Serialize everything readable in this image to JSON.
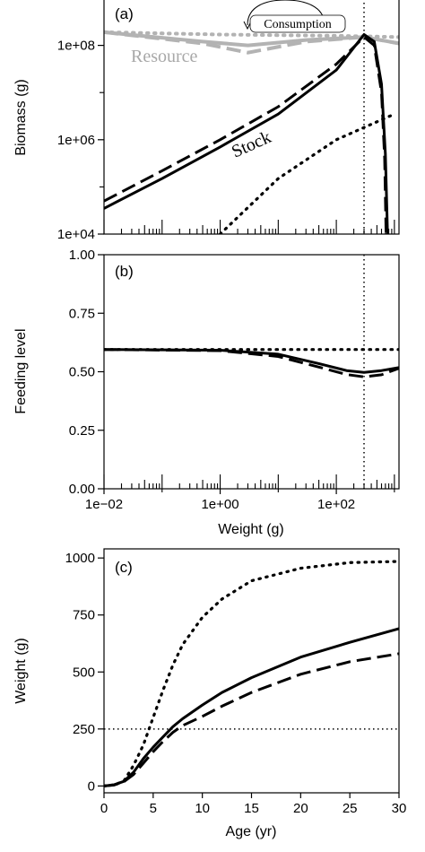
{
  "chart_data": [
    {
      "panel": "(a)",
      "type": "line",
      "xscale": "log",
      "yscale": "log",
      "xlim": [
        0.01,
        1200
      ],
      "ylim": [
        10000,
        1000000000
      ],
      "xlabel": "",
      "ylabel": "Biomass (g)",
      "yticks": [
        10000,
        1000000,
        100000000
      ],
      "ytick_labels": [
        "1e+04",
        "1e+06",
        "1e+08"
      ],
      "annotations": {
        "resource": "Resource",
        "stock": "Stock",
        "consumption": "Consumption"
      },
      "vline_x": 300,
      "series": [
        {
          "group": "stock",
          "style": "solid",
          "color": "#000000",
          "points": [
            [
              0.01,
              35000
            ],
            [
              0.1,
              150000
            ],
            [
              1,
              700000
            ],
            [
              10,
              3500000
            ],
            [
              100,
              30000000
            ],
            [
              300,
              170000000
            ],
            [
              450,
              120000000
            ],
            [
              600,
              15000000
            ],
            [
              700,
              500000
            ],
            [
              760,
              10000
            ]
          ]
        },
        {
          "group": "stock",
          "style": "dashed",
          "color": "#000000",
          "points": [
            [
              0.01,
              50000
            ],
            [
              0.1,
              220000
            ],
            [
              1,
              1000000
            ],
            [
              10,
              5000000
            ],
            [
              100,
              40000000
            ],
            [
              300,
              150000000
            ],
            [
              450,
              100000000
            ],
            [
              600,
              10000000
            ],
            [
              680,
              400000
            ],
            [
              720,
              10000
            ]
          ]
        },
        {
          "group": "stock",
          "style": "dotted",
          "color": "#000000",
          "points": [
            [
              1,
              10000
            ],
            [
              10,
              150000
            ],
            [
              100,
              1000000
            ],
            [
              1000,
              3500000
            ]
          ]
        },
        {
          "group": "resource",
          "style": "solid",
          "color": "#b3b3b3",
          "points": [
            [
              0.01,
              190000000
            ],
            [
              0.5,
              120000000
            ],
            [
              3,
              100000000
            ],
            [
              30,
              130000000
            ],
            [
              300,
              150000000
            ],
            [
              1200,
              110000000
            ]
          ]
        },
        {
          "group": "resource",
          "style": "dashed",
          "color": "#b3b3b3",
          "points": [
            [
              0.01,
              190000000
            ],
            [
              0.5,
              110000000
            ],
            [
              3,
              70000000
            ],
            [
              30,
              120000000
            ],
            [
              300,
              150000000
            ],
            [
              1200,
              110000000
            ]
          ]
        },
        {
          "group": "resource",
          "style": "dotted",
          "color": "#b3b3b3",
          "points": [
            [
              0.01,
              190000000
            ],
            [
              1,
              170000000
            ],
            [
              100,
              160000000
            ],
            [
              1200,
              150000000
            ]
          ]
        }
      ]
    },
    {
      "panel": "(b)",
      "type": "line",
      "xscale": "log",
      "yscale": "linear",
      "xlim": [
        0.01,
        1200
      ],
      "ylim": [
        0,
        1
      ],
      "xlabel": "Weight (g)",
      "ylabel": "Feeding level",
      "xticks": [
        0.01,
        1,
        100
      ],
      "xtick_labels": [
        "1e−02",
        "1e+00",
        "1e+02"
      ],
      "yticks": [
        0,
        0.25,
        0.5,
        0.75,
        1
      ],
      "ytick_labels": [
        "0.00",
        "0.25",
        "0.50",
        "0.75",
        "1.00"
      ],
      "vline_x": 300,
      "series": [
        {
          "style": "solid",
          "color": "#000000",
          "points": [
            [
              0.01,
              0.595
            ],
            [
              1,
              0.592
            ],
            [
              10,
              0.575
            ],
            [
              50,
              0.535
            ],
            [
              150,
              0.505
            ],
            [
              300,
              0.497
            ],
            [
              600,
              0.505
            ],
            [
              1200,
              0.518
            ]
          ]
        },
        {
          "style": "dashed",
          "color": "#000000",
          "points": [
            [
              0.01,
              0.595
            ],
            [
              1,
              0.59
            ],
            [
              10,
              0.565
            ],
            [
              50,
              0.52
            ],
            [
              150,
              0.488
            ],
            [
              300,
              0.478
            ],
            [
              600,
              0.487
            ],
            [
              1200,
              0.515
            ]
          ]
        },
        {
          "style": "dotted",
          "color": "#000000",
          "points": [
            [
              0.01,
              0.595
            ],
            [
              1200,
              0.595
            ]
          ]
        }
      ]
    },
    {
      "panel": "(c)",
      "type": "line",
      "xscale": "linear",
      "yscale": "linear",
      "xlim": [
        0,
        30
      ],
      "ylim": [
        -30,
        1040
      ],
      "xlabel": "Age (yr)",
      "ylabel": "Weight (g)",
      "xticks": [
        0,
        5,
        10,
        15,
        20,
        25,
        30
      ],
      "xtick_labels": [
        "0",
        "5",
        "10",
        "15",
        "20",
        "25",
        "30"
      ],
      "yticks": [
        0,
        250,
        500,
        750,
        1000
      ],
      "ytick_labels": [
        "0",
        "250",
        "500",
        "750",
        "1000"
      ],
      "hline_y": 250,
      "series": [
        {
          "style": "solid",
          "color": "#000000",
          "points": [
            [
              0,
              0
            ],
            [
              1,
              5
            ],
            [
              2,
              20
            ],
            [
              3,
              60
            ],
            [
              4,
              120
            ],
            [
              5,
              170
            ],
            [
              6,
              215
            ],
            [
              7,
              260
            ],
            [
              8,
              295
            ],
            [
              10,
              355
            ],
            [
              12,
              410
            ],
            [
              15,
              475
            ],
            [
              20,
              565
            ],
            [
              25,
              630
            ],
            [
              30,
              690
            ]
          ]
        },
        {
          "style": "dashed",
          "color": "#000000",
          "points": [
            [
              0,
              0
            ],
            [
              1,
              4
            ],
            [
              2,
              18
            ],
            [
              3,
              50
            ],
            [
              4,
              100
            ],
            [
              5,
              150
            ],
            [
              6,
              195
            ],
            [
              7,
              235
            ],
            [
              8,
              265
            ],
            [
              10,
              305
            ],
            [
              12,
              350
            ],
            [
              15,
              410
            ],
            [
              20,
              490
            ],
            [
              25,
              545
            ],
            [
              30,
              580
            ]
          ]
        },
        {
          "style": "dotted",
          "color": "#000000",
          "points": [
            [
              0,
              0
            ],
            [
              1,
              5
            ],
            [
              2,
              20
            ],
            [
              3,
              90
            ],
            [
              4,
              180
            ],
            [
              5,
              300
            ],
            [
              6,
              420
            ],
            [
              7,
              530
            ],
            [
              8,
              620
            ],
            [
              10,
              740
            ],
            [
              12,
              820
            ],
            [
              15,
              900
            ],
            [
              20,
              955
            ],
            [
              25,
              980
            ],
            [
              30,
              985
            ]
          ]
        }
      ]
    }
  ]
}
